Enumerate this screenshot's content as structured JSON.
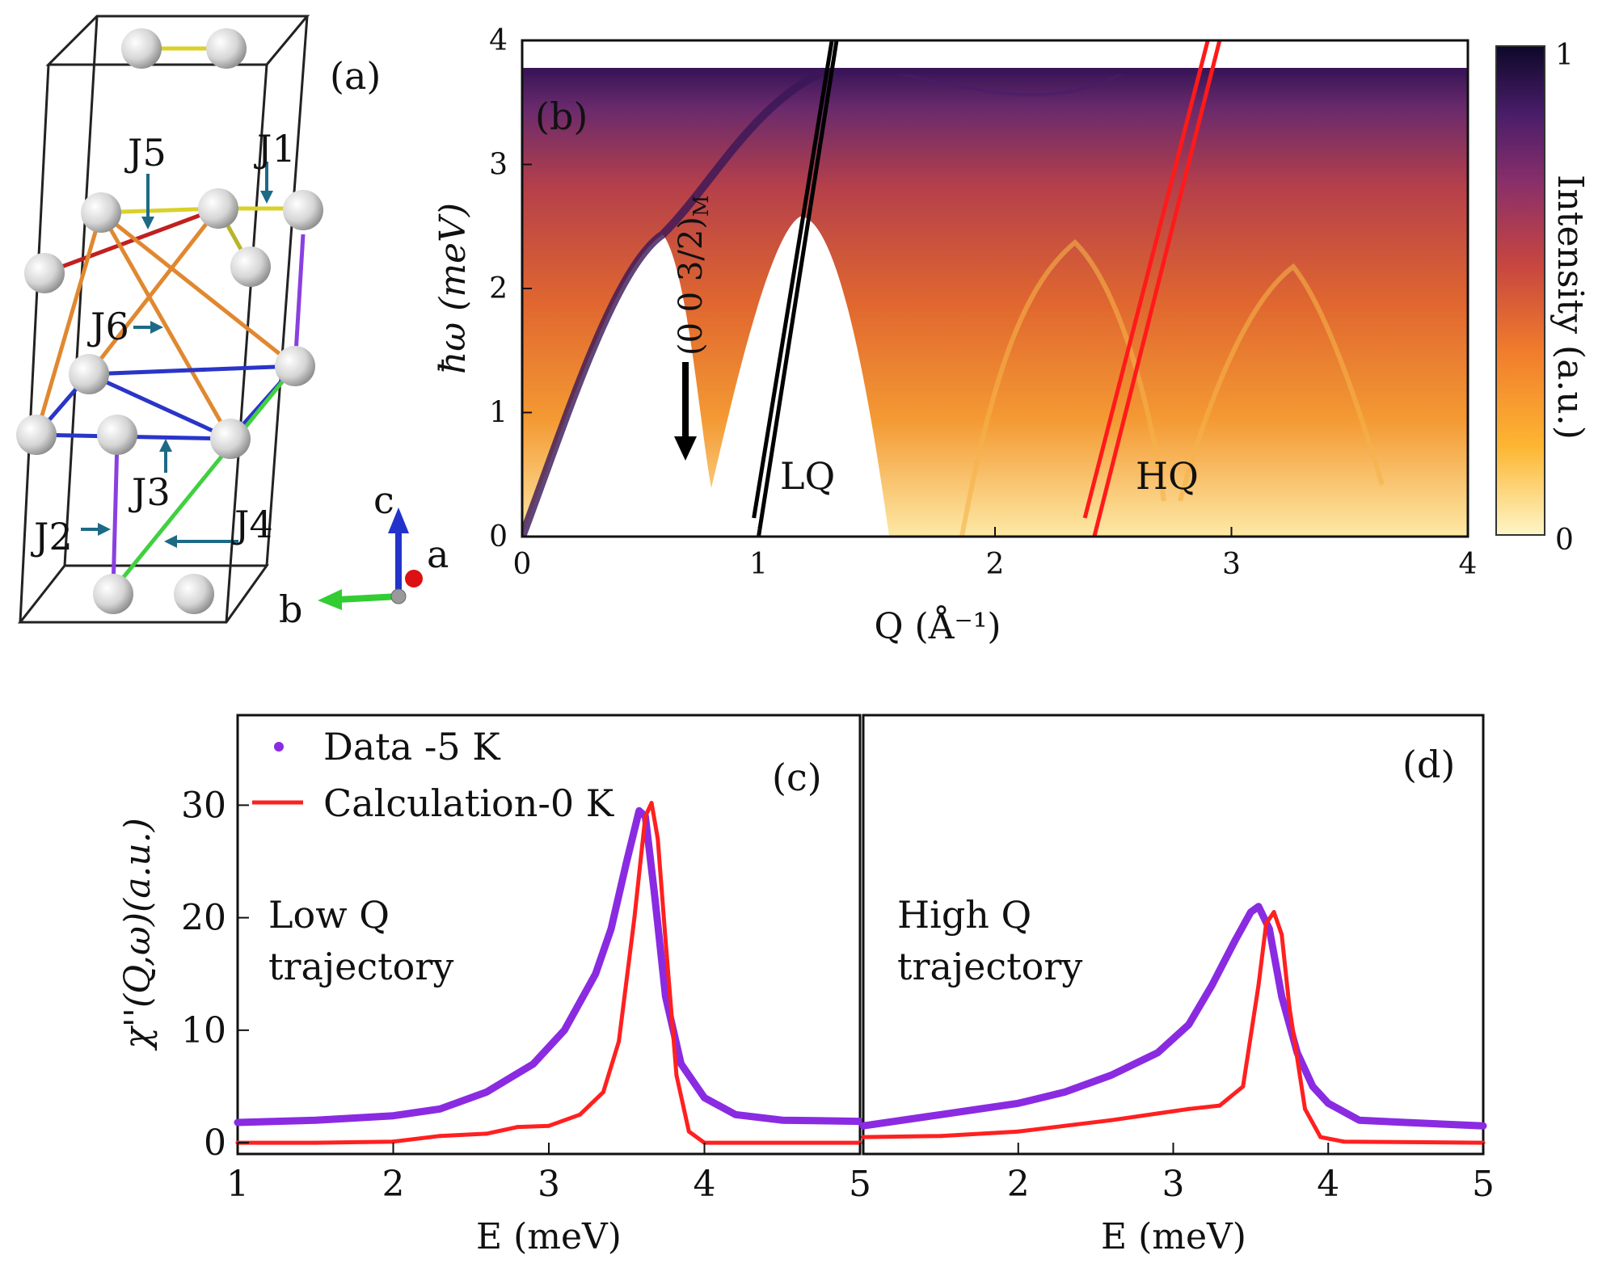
{
  "panel_a": {
    "label": "(a)",
    "couplings": [
      "J5",
      "J1",
      "J6",
      "J3",
      "J2",
      "J4"
    ],
    "axes": [
      "c",
      "a",
      "b"
    ]
  },
  "colorbar": {
    "label": "Intensity (a.u.)",
    "max": "1",
    "min": "0",
    "colors": [
      "#fdf6c8",
      "#fdb632",
      "#f07b2c",
      "#c8463f",
      "#8a2f6a",
      "#4a1d6a",
      "#0d0829"
    ]
  },
  "chart_data": [
    {
      "type": "heatmap",
      "panel": "(b)",
      "xlabel": "Q (Å⁻¹)",
      "ylabel": "ħω (meV)",
      "xlim": [
        0,
        4
      ],
      "ylim": [
        0,
        4
      ],
      "xticks": [
        "0",
        "1",
        "2",
        "3",
        "4"
      ],
      "yticks": [
        "0",
        "1",
        "2",
        "3",
        "4"
      ],
      "annotations": {
        "peak": "(0 0 3/2)",
        "peak_sub": "M",
        "low": "LQ",
        "high": "HQ"
      },
      "trajectories": [
        {
          "name": "LQ",
          "color": "#000000",
          "lines": [
            [
              [
                1.0,
                0.0
              ],
              [
                1.33,
                4.0
              ]
            ],
            [
              [
                0.98,
                0.15
              ],
              [
                1.31,
                4.0
              ]
            ]
          ]
        },
        {
          "name": "HQ",
          "color": "#ff1a1a",
          "lines": [
            [
              [
                2.42,
                0.0
              ],
              [
                2.95,
                4.0
              ]
            ],
            [
              [
                2.38,
                0.15
              ],
              [
                2.9,
                4.0
              ]
            ]
          ]
        }
      ],
      "grid": false
    },
    {
      "type": "line",
      "panel": "(c)",
      "annotation": [
        "Low Q",
        "trajectory"
      ],
      "xlabel": "E (meV)",
      "ylabel": "χ''(Q,ω)(a.u.)",
      "xlim": [
        1,
        5
      ],
      "ylim": [
        -1,
        38
      ],
      "xticks": [
        "1",
        "2",
        "3",
        "4",
        "5"
      ],
      "yticks": [
        "0",
        "10",
        "20",
        "30"
      ],
      "legend": {
        "placement": "top-left",
        "entries": [
          "Data -5 K",
          "Calculation-0 K"
        ]
      },
      "series": [
        {
          "name": "Data -5 K",
          "color": "#8a2be2",
          "x": [
            1.0,
            1.5,
            2.0,
            2.3,
            2.6,
            2.9,
            3.1,
            3.3,
            3.4,
            3.5,
            3.58,
            3.62,
            3.68,
            3.75,
            3.85,
            4.0,
            4.2,
            4.5,
            5.0
          ],
          "y": [
            1.8,
            2.0,
            2.4,
            3.0,
            4.5,
            7.0,
            10.0,
            15.0,
            19.0,
            25.0,
            29.5,
            29.0,
            22.0,
            13.0,
            7.0,
            4.0,
            2.5,
            2.0,
            1.9
          ]
        },
        {
          "name": "Calculation-0 K",
          "color": "#ff2020",
          "x": [
            1.0,
            1.5,
            2.0,
            2.3,
            2.6,
            2.8,
            3.0,
            3.2,
            3.35,
            3.45,
            3.55,
            3.62,
            3.66,
            3.7,
            3.75,
            3.82,
            3.9,
            4.0,
            5.0
          ],
          "y": [
            0.0,
            0.0,
            0.1,
            0.6,
            0.8,
            1.4,
            1.5,
            2.5,
            4.5,
            9.0,
            20.0,
            29.0,
            30.2,
            27.0,
            18.0,
            6.0,
            1.0,
            0.0,
            0.0
          ]
        }
      ],
      "grid": false
    },
    {
      "type": "line",
      "panel": "(d)",
      "annotation": [
        "High Q",
        "trajectory"
      ],
      "xlabel": "E (meV)",
      "xlim": [
        1,
        5
      ],
      "ylim": [
        -1,
        38
      ],
      "xticks": [
        "2",
        "3",
        "4",
        "5"
      ],
      "series": [
        {
          "name": "Data -5 K",
          "color": "#8a2be2",
          "x": [
            1.0,
            1.5,
            2.0,
            2.3,
            2.6,
            2.9,
            3.1,
            3.25,
            3.4,
            3.5,
            3.55,
            3.62,
            3.7,
            3.8,
            3.9,
            4.0,
            4.2,
            4.5,
            5.0
          ],
          "y": [
            1.5,
            2.5,
            3.5,
            4.5,
            6.0,
            8.0,
            10.5,
            14.0,
            18.0,
            20.5,
            21.0,
            19.0,
            13.0,
            8.0,
            5.0,
            3.5,
            2.0,
            1.8,
            1.5
          ]
        },
        {
          "name": "Calculation-0 K",
          "color": "#ff2020",
          "x": [
            1.0,
            1.5,
            2.0,
            2.3,
            2.6,
            2.9,
            3.1,
            3.3,
            3.45,
            3.55,
            3.6,
            3.65,
            3.7,
            3.75,
            3.85,
            3.95,
            4.1,
            5.0
          ],
          "y": [
            0.5,
            0.6,
            1.0,
            1.5,
            2.0,
            2.6,
            3.0,
            3.3,
            5.0,
            14.0,
            19.5,
            20.5,
            18.5,
            12.0,
            3.0,
            0.5,
            0.1,
            0.0
          ]
        }
      ],
      "grid": false
    }
  ]
}
